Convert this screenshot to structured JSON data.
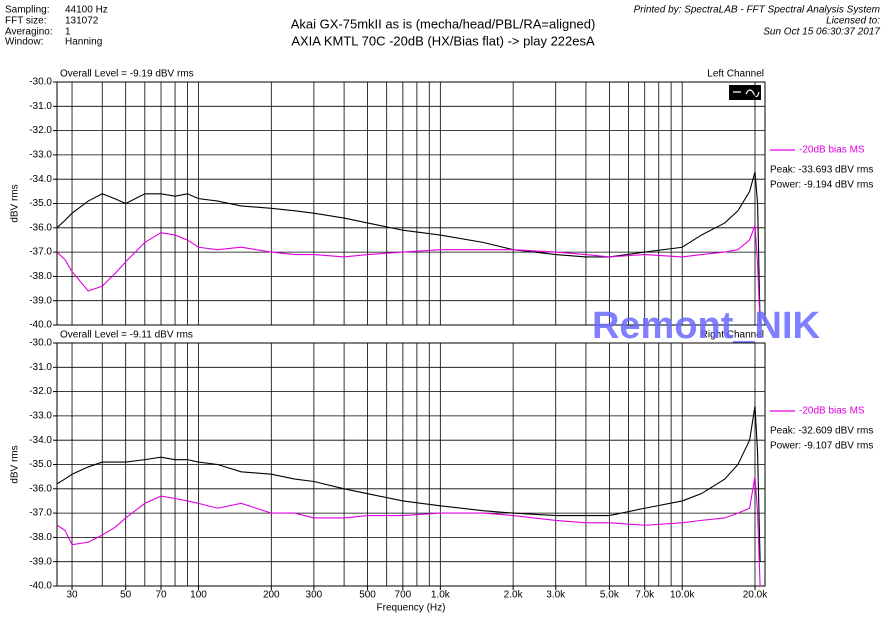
{
  "header": {
    "info": [
      [
        "Sampling:",
        "44100 Hz"
      ],
      [
        "FFT size:",
        "131072"
      ],
      [
        "Averagino:",
        "1"
      ],
      [
        "Window:",
        "Hanning"
      ]
    ],
    "title": [
      "Akai GX-75mkII as is (mecha/head/PBL/RA=aligned)",
      "AXIA KMTL 70C -20dB (HX/Bias flat) -> play 222esA"
    ],
    "printed_by": [
      "Printed by: SpectraLAB - FFT Spectral Analysis System",
      "Licensed to:",
      "Sun Oct 15 06:30:37 2017"
    ],
    "watermark": "Remont_NIK"
  },
  "chart_data": [
    {
      "type": "line",
      "overall_level": "Overall Level = -9.19 dBV rms",
      "channel": "Left Channel",
      "ylabel": "dBV rms",
      "peak_label": "Peak: -33.693 dBV rms",
      "power_label": "Power: -9.194 dBV rms",
      "log_x": true,
      "grid": true,
      "xlim": [
        26,
        22000
      ],
      "ylim": [
        -40,
        -30
      ],
      "yticks": [
        {
          "value": -30,
          "label": "-30.0"
        },
        {
          "value": -31,
          "label": "-31.0"
        },
        {
          "value": -32,
          "label": "-32.0"
        },
        {
          "value": -33,
          "label": "-33.0"
        },
        {
          "value": -34,
          "label": "-34.0"
        },
        {
          "value": -35,
          "label": "-35.0"
        },
        {
          "value": -36,
          "label": "-36.0"
        },
        {
          "value": -37,
          "label": "-37.0"
        },
        {
          "value": -38,
          "label": "-38.0"
        },
        {
          "value": -39,
          "label": "-39.0"
        },
        {
          "value": -40,
          "label": "-40.0"
        }
      ],
      "xgrid": [
        30,
        40,
        50,
        60,
        70,
        80,
        90,
        100,
        200,
        300,
        400,
        500,
        600,
        700,
        800,
        900,
        1000,
        2000,
        3000,
        4000,
        5000,
        6000,
        7000,
        8000,
        9000,
        10000,
        20000
      ],
      "x": [
        26,
        28,
        30,
        35,
        40,
        45,
        50,
        60,
        70,
        80,
        90,
        100,
        120,
        150,
        200,
        250,
        300,
        400,
        500,
        700,
        1000,
        1500,
        2000,
        3000,
        4000,
        5000,
        7000,
        10000,
        12000,
        15000,
        17000,
        19000,
        20000,
        20500,
        21000
      ],
      "series": [
        {
          "color": "#000000",
          "values": [
            -36.0,
            -35.7,
            -35.4,
            -34.9,
            -34.6,
            -34.8,
            -35.0,
            -34.6,
            -34.6,
            -34.7,
            -34.6,
            -34.8,
            -34.9,
            -35.1,
            -35.2,
            -35.3,
            -35.4,
            -35.6,
            -35.8,
            -36.1,
            -36.3,
            -36.6,
            -36.9,
            -37.1,
            -37.2,
            -37.2,
            -37.0,
            -36.8,
            -36.3,
            -35.8,
            -35.3,
            -34.5,
            -33.7,
            -35.0,
            -40.0
          ]
        },
        {
          "name": "-20dB bias MS",
          "color": "#e000e0",
          "values": [
            -37.0,
            -37.3,
            -37.8,
            -38.6,
            -38.4,
            -37.9,
            -37.4,
            -36.6,
            -36.2,
            -36.3,
            -36.5,
            -36.8,
            -36.9,
            -36.8,
            -37.0,
            -37.1,
            -37.1,
            -37.2,
            -37.1,
            -37.0,
            -36.9,
            -36.9,
            -36.9,
            -37.0,
            -37.1,
            -37.2,
            -37.1,
            -37.2,
            -37.1,
            -37.0,
            -36.9,
            -36.5,
            -35.9,
            -37.5,
            -40.0
          ]
        }
      ]
    },
    {
      "type": "line",
      "overall_level": "Overall Level = -9.11 dBV rms",
      "channel": "Right Channel",
      "ylabel": "dBV rms",
      "xlabel": "Frequency (Hz)",
      "peak_label": "Peak: -32.609 dBV rms",
      "power_label": "Power: -9.107 dBV rms",
      "log_x": true,
      "grid": true,
      "xlim": [
        26,
        22000
      ],
      "ylim": [
        -40,
        -30
      ],
      "yticks": [
        {
          "value": -30,
          "label": "-30.0"
        },
        {
          "value": -31,
          "label": "-31.0"
        },
        {
          "value": -32,
          "label": "-32.0"
        },
        {
          "value": -33,
          "label": "-33.0"
        },
        {
          "value": -34,
          "label": "-34.0"
        },
        {
          "value": -35,
          "label": "-35.0"
        },
        {
          "value": -36,
          "label": "-36.0"
        },
        {
          "value": -37,
          "label": "-37.0"
        },
        {
          "value": -38,
          "label": "-38.0"
        },
        {
          "value": -39,
          "label": "-39.0"
        },
        {
          "value": -40,
          "label": "-40.0"
        }
      ],
      "xticks": [
        30,
        50,
        70,
        100,
        200,
        300,
        500,
        700,
        {
          "value": 1000,
          "label": "1.0k"
        },
        {
          "value": 2000,
          "label": "2.0k"
        },
        {
          "value": 3000,
          "label": "3.0k"
        },
        {
          "value": 5000,
          "label": "5.0k"
        },
        {
          "value": 7000,
          "label": "7.0k"
        },
        {
          "value": 10000,
          "label": "10.0k"
        },
        {
          "value": 20000,
          "label": "20.0k"
        }
      ],
      "xgrid": [
        30,
        40,
        50,
        60,
        70,
        80,
        90,
        100,
        200,
        300,
        400,
        500,
        600,
        700,
        800,
        900,
        1000,
        2000,
        3000,
        4000,
        5000,
        6000,
        7000,
        8000,
        9000,
        10000,
        20000
      ],
      "x": [
        26,
        28,
        30,
        35,
        40,
        45,
        50,
        60,
        70,
        80,
        90,
        100,
        120,
        150,
        200,
        250,
        300,
        400,
        500,
        700,
        1000,
        1500,
        2000,
        3000,
        4000,
        5000,
        7000,
        10000,
        12000,
        15000,
        17000,
        19000,
        20000,
        20500,
        21000
      ],
      "series": [
        {
          "color": "#000000",
          "values": [
            -35.8,
            -35.6,
            -35.4,
            -35.1,
            -34.9,
            -34.9,
            -34.9,
            -34.8,
            -34.7,
            -34.8,
            -34.8,
            -34.9,
            -35.0,
            -35.3,
            -35.4,
            -35.6,
            -35.7,
            -36.0,
            -36.2,
            -36.5,
            -36.7,
            -36.9,
            -37.0,
            -37.1,
            -37.1,
            -37.1,
            -36.8,
            -36.5,
            -36.2,
            -35.6,
            -35.0,
            -34.0,
            -32.6,
            -34.5,
            -39.0
          ]
        },
        {
          "name": "-20dB bias MS",
          "color": "#e000e0",
          "values": [
            -37.5,
            -37.7,
            -38.3,
            -38.2,
            -37.9,
            -37.6,
            -37.2,
            -36.6,
            -36.3,
            -36.4,
            -36.5,
            -36.6,
            -36.8,
            -36.6,
            -37.0,
            -37.0,
            -37.2,
            -37.2,
            -37.1,
            -37.1,
            -37.0,
            -37.0,
            -37.1,
            -37.3,
            -37.4,
            -37.4,
            -37.5,
            -37.4,
            -37.3,
            -37.2,
            -37.0,
            -36.8,
            -35.5,
            -37.0,
            -40.0
          ]
        }
      ]
    }
  ]
}
